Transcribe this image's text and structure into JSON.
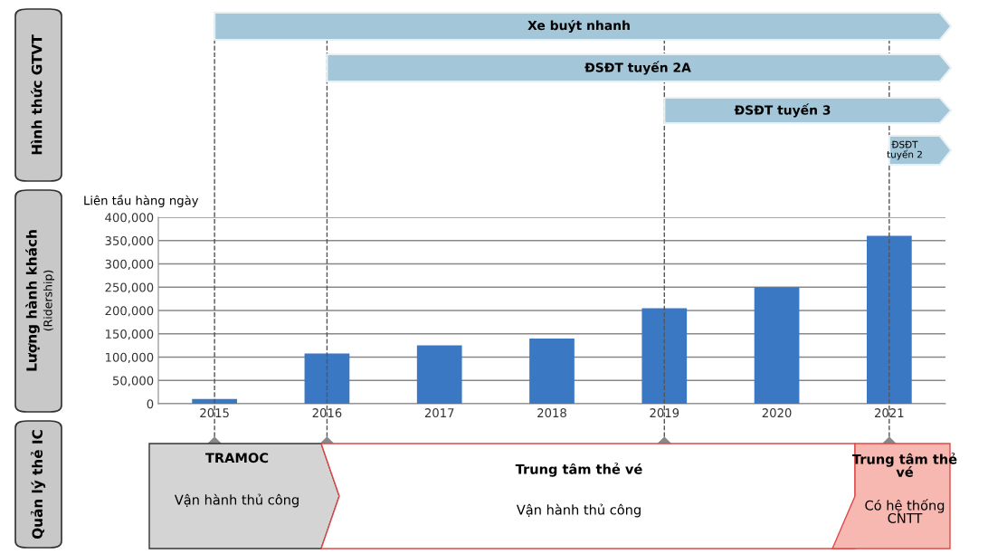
{
  "chart_data": {
    "type": "bar",
    "ylabel": "Liên tầu hàng ngày",
    "categories": [
      "2015",
      "2016",
      "2017",
      "2018",
      "2019",
      "2020",
      "2021"
    ],
    "values": [
      10000,
      108000,
      125000,
      140000,
      205000,
      250000,
      360000
    ],
    "color": "#3a78c4",
    "ylim": [
      0,
      400000
    ],
    "yticks": [
      {
        "value": 0,
        "label": "0"
      },
      {
        "value": 50000,
        "label": "50,000"
      },
      {
        "value": 100000,
        "label": "100,000"
      },
      {
        "value": 150000,
        "label": "150,000"
      },
      {
        "value": 200000,
        "label": "200,000"
      },
      {
        "value": 250000,
        "label": "250,000"
      },
      {
        "value": 300000,
        "label": "300,000"
      },
      {
        "value": 350000,
        "label": "350,000"
      },
      {
        "value": 400000,
        "label": "400,000"
      }
    ],
    "grid": "y",
    "legend": false,
    "ref_lines": [
      {
        "axis": "x",
        "value": "2015",
        "color": "#555555",
        "line_style": "dashed"
      },
      {
        "axis": "x",
        "value": "2016",
        "color": "#555555",
        "line_style": "dashed"
      },
      {
        "axis": "x",
        "value": "2019",
        "color": "#555555",
        "line_style": "dashed"
      },
      {
        "axis": "x",
        "value": "2021",
        "color": "#555555",
        "line_style": "dashed"
      }
    ],
    "annotations": [
      "Hình thức GTVT",
      "Lượng hành khách",
      "(Ridership)",
      "Quản lý thẻ IC",
      "Xe buýt nhanh",
      "ĐSĐT tuyến 2A",
      "ĐSĐT tuyến 3",
      "ĐSĐT\ntuyến 2",
      "TRAMOC",
      "Vận hành thủ công",
      "Trung tâm thẻ vé",
      "Vận hành thủ công",
      "Trung tâm thẻ\nvé",
      "Có hệ thống\nCNTT"
    ]
  }
}
